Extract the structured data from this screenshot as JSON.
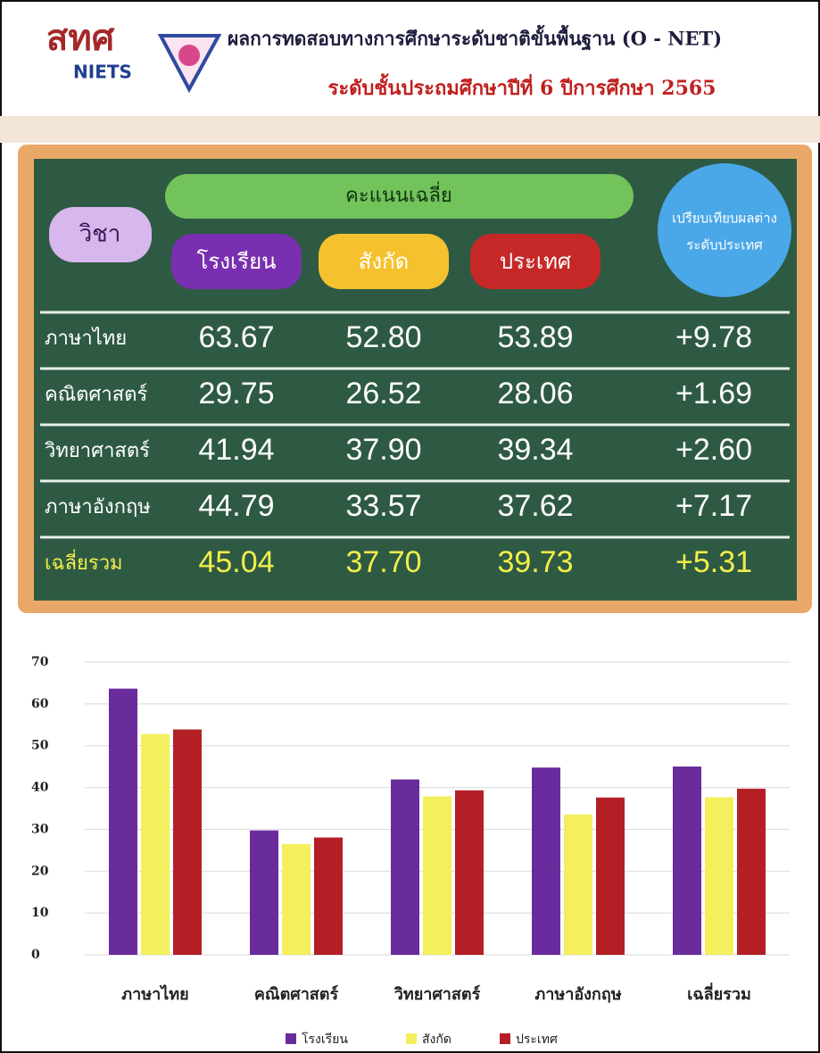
{
  "header": {
    "logo_thai": "สทศ",
    "logo_en": "NIETS",
    "title": "ผลการทดสอบทางการศึกษาระดับชาติขั้นพื้นฐาน (O - NET)",
    "subtitle": "ระดับชั้นประถมศึกษาปีที่ 6 ปีการศึกษา 2565"
  },
  "table": {
    "subject_header": "วิชา",
    "average_header": "คะแนนเฉลี่ย",
    "columns": [
      "โรงเรียน",
      "สังกัด",
      "ประเทศ"
    ],
    "comparison_header": [
      "เปรียบเทียบผลต่าง",
      "ระดับประเทศ"
    ],
    "rows": [
      [
        "ภาษาไทย",
        "63.67",
        "52.80",
        "53.89",
        "+9.78"
      ],
      [
        "คณิตศาสตร์",
        "29.75",
        "26.52",
        "28.06",
        "+1.69"
      ],
      [
        "วิทยาศาสตร์",
        "41.94",
        "37.90",
        "39.34",
        "+2.60"
      ],
      [
        "ภาษาอังกฤษ",
        "44.79",
        "33.57",
        "37.62",
        "+7.17"
      ],
      [
        "เฉลี่ยรวม",
        "45.04",
        "37.70",
        "39.73",
        "+5.31"
      ]
    ]
  },
  "chart_data": {
    "type": "bar",
    "categories": [
      "ภาษาไทย",
      "คณิตศาสตร์",
      "วิทยาศาสตร์",
      "ภาษาอังกฤษ",
      "เฉลี่ยรวม"
    ],
    "series": [
      {
        "name": "โรงเรียน",
        "color": "#6a2c9c",
        "values": [
          63.67,
          29.75,
          41.94,
          44.79,
          45.04
        ]
      },
      {
        "name": "สังกัด",
        "color": "#f4ef5c",
        "values": [
          52.8,
          26.52,
          37.9,
          33.57,
          37.7
        ]
      },
      {
        "name": "ประเทศ",
        "color": "#b41f25",
        "values": [
          53.89,
          28.06,
          39.34,
          37.62,
          39.73
        ]
      }
    ],
    "ylim": [
      0,
      70
    ],
    "yticks": [
      0,
      10,
      20,
      30,
      40,
      50,
      60,
      70
    ],
    "grid": true
  }
}
